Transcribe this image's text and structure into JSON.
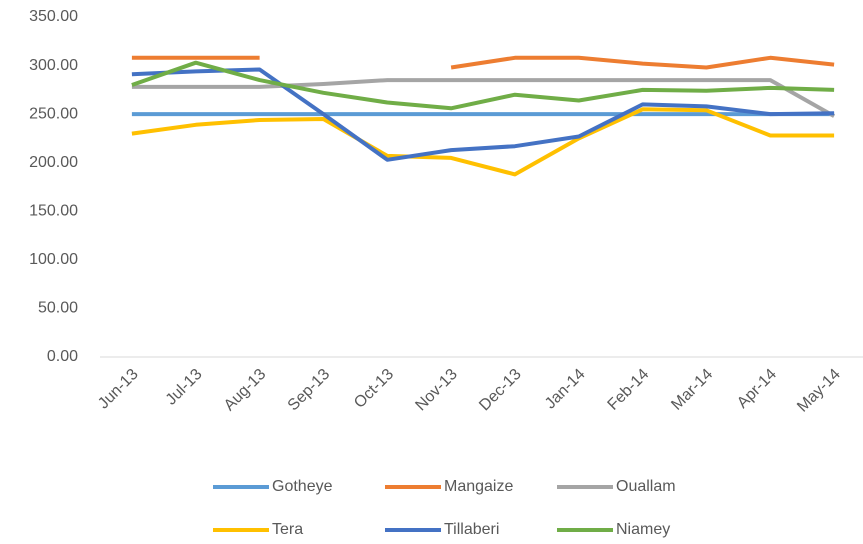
{
  "chart_data": {
    "type": "line",
    "categories": [
      "Jun-13",
      "Jul-13",
      "Aug-13",
      "Sep-13",
      "Oct-13",
      "Nov-13",
      "Dec-13",
      "Jan-14",
      "Feb-14",
      "Mar-14",
      "Apr-14",
      "May-14"
    ],
    "series": [
      {
        "name": "Gotheye",
        "color": "#5b9bd5",
        "values": [
          250,
          250,
          250,
          250,
          250,
          250,
          250,
          250,
          250,
          250,
          250,
          250
        ]
      },
      {
        "name": "Mangaize",
        "color": "#ed7d31",
        "values": [
          308,
          308,
          308,
          null,
          null,
          298,
          308,
          308,
          302,
          298,
          308,
          301
        ]
      },
      {
        "name": "Ouallam",
        "color": "#a5a5a5",
        "values": [
          278,
          278,
          278,
          281,
          285,
          285,
          285,
          285,
          285,
          285,
          285,
          248
        ]
      },
      {
        "name": "Tera",
        "color": "#ffc000",
        "values": [
          230,
          239,
          244,
          245,
          207,
          205,
          188,
          225,
          255,
          254,
          228,
          228
        ]
      },
      {
        "name": "Tillaberi",
        "color": "#4472c4",
        "values": [
          291,
          294,
          296,
          250,
          203,
          213,
          217,
          227,
          260,
          258,
          250,
          251
        ]
      },
      {
        "name": "Niamey",
        "color": "#70ad47",
        "values": [
          280,
          303,
          285,
          272,
          262,
          256,
          270,
          264,
          275,
          274,
          277,
          275
        ]
      }
    ],
    "ylim": [
      0,
      350
    ],
    "yticks": [
      {
        "value": 0,
        "label": "0.00"
      },
      {
        "value": 50,
        "label": "50.00"
      },
      {
        "value": 100,
        "label": "100.00"
      },
      {
        "value": 150,
        "label": "150.00"
      },
      {
        "value": 200,
        "label": "200.00"
      },
      {
        "value": 250,
        "label": "250.00"
      },
      {
        "value": 300,
        "label": "300.00"
      },
      {
        "value": 350,
        "label": "350.00"
      }
    ],
    "grid": false,
    "legend": "bottom"
  }
}
